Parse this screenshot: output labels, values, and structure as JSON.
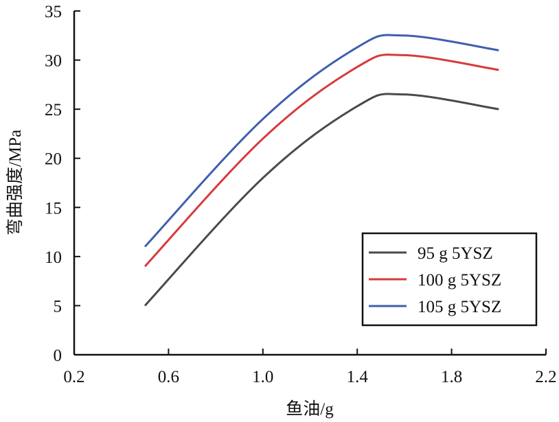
{
  "chart_data": {
    "type": "line",
    "title": "",
    "xlabel": "鱼油/g",
    "ylabel": "弯曲强度/MPa",
    "xlim": [
      0.2,
      2.2
    ],
    "ylim": [
      0,
      35
    ],
    "xticks": [
      "0.2",
      "0.6",
      "1.0",
      "1.4",
      "1.8",
      "2.2"
    ],
    "yticks": [
      "0",
      "5",
      "10",
      "15",
      "20",
      "25",
      "30",
      "35"
    ],
    "grid": false,
    "legend_position": "lower-right",
    "x": [
      0.5,
      1.0,
      1.4,
      1.6,
      2.0
    ],
    "series": [
      {
        "name": "95 g 5YSZ",
        "color": "#4a4a4a",
        "values": [
          5,
          18,
          25.3,
          26.5,
          25
        ]
      },
      {
        "name": "100 g 5YSZ",
        "color": "#d9393b",
        "values": [
          9,
          22,
          29.3,
          30.5,
          29
        ]
      },
      {
        "name": "105 g 5YSZ",
        "color": "#3f5fae",
        "values": [
          11,
          24,
          31.3,
          32.5,
          31
        ]
      }
    ]
  }
}
